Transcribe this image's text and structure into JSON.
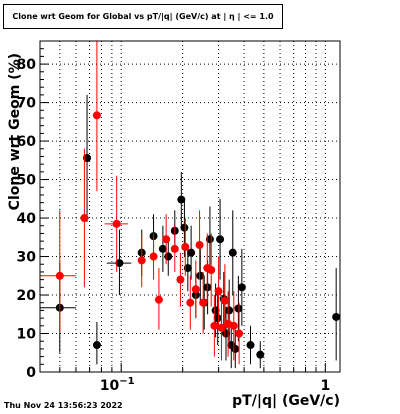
{
  "chart_data": {
    "type": "scatter",
    "title": "Clone wrt Geom for Global vs pT/|q| (GeV/c) at | η | <= 1.0",
    "xlabel": "pT/|q| (GeV/c)",
    "ylabel": "Clone wrt Geom (%)",
    "xscale": "log",
    "xlim": [
      0.04,
      1.18
    ],
    "ylim": [
      0,
      86
    ],
    "grid": true,
    "x_major_ticks": [
      {
        "value": 0.1,
        "label": "10",
        "exp": "−1"
      },
      {
        "value": 1,
        "label": "1"
      }
    ],
    "y_ticks": [
      0,
      10,
      20,
      30,
      40,
      50,
      60,
      70,
      80
    ],
    "series": [
      {
        "color": "#000000",
        "points": [
          {
            "x": 0.05,
            "y": 16.7,
            "ylo": 5,
            "yhi": 28.5,
            "xlo": 0.04,
            "xhi": 0.06
          },
          {
            "x": 0.068,
            "y": 55.6,
            "ylo": 39,
            "yhi": 72
          },
          {
            "x": 0.076,
            "y": 7.0,
            "ylo": 2,
            "yhi": 13
          },
          {
            "x": 0.098,
            "y": 28.3,
            "ylo": 20,
            "yhi": 37,
            "xlo": 0.085,
            "xhi": 0.112
          },
          {
            "x": 0.126,
            "y": 31.0,
            "ylo": 25,
            "yhi": 37
          },
          {
            "x": 0.144,
            "y": 35.3,
            "ylo": 29,
            "yhi": 41
          },
          {
            "x": 0.16,
            "y": 32.0,
            "ylo": 26,
            "yhi": 38
          },
          {
            "x": 0.17,
            "y": 30.0,
            "ylo": 25,
            "yhi": 35
          },
          {
            "x": 0.183,
            "y": 36.7,
            "ylo": 31,
            "yhi": 42
          },
          {
            "x": 0.197,
            "y": 44.8,
            "ylo": 37,
            "yhi": 52
          },
          {
            "x": 0.204,
            "y": 37.5,
            "ylo": 30,
            "yhi": 45
          },
          {
            "x": 0.212,
            "y": 27.0,
            "ylo": 21,
            "yhi": 33
          },
          {
            "x": 0.22,
            "y": 31.0,
            "ylo": 24,
            "yhi": 38
          },
          {
            "x": 0.232,
            "y": 20.0,
            "ylo": 14,
            "yhi": 26
          },
          {
            "x": 0.244,
            "y": 25.0,
            "ylo": 18,
            "yhi": 32
          },
          {
            "x": 0.255,
            "y": 18.0,
            "ylo": 11,
            "yhi": 25
          },
          {
            "x": 0.265,
            "y": 22.0,
            "ylo": 15,
            "yhi": 29
          },
          {
            "x": 0.272,
            "y": 34.5,
            "ylo": 26,
            "yhi": 43
          },
          {
            "x": 0.29,
            "y": 16.0,
            "ylo": 9,
            "yhi": 23
          },
          {
            "x": 0.297,
            "y": 14.0,
            "ylo": 7,
            "yhi": 21
          },
          {
            "x": 0.305,
            "y": 34.5,
            "ylo": 24,
            "yhi": 45
          },
          {
            "x": 0.318,
            "y": 19.0,
            "ylo": 12,
            "yhi": 26
          },
          {
            "x": 0.326,
            "y": 10.0,
            "ylo": 3,
            "yhi": 17
          },
          {
            "x": 0.338,
            "y": 16.0,
            "ylo": 8,
            "yhi": 24
          },
          {
            "x": 0.346,
            "y": 7.0,
            "ylo": 1,
            "yhi": 13
          },
          {
            "x": 0.352,
            "y": 31.0,
            "ylo": 20,
            "yhi": 42
          },
          {
            "x": 0.362,
            "y": 6.0,
            "ylo": 1,
            "yhi": 11
          },
          {
            "x": 0.375,
            "y": 16.5,
            "ylo": 8,
            "yhi": 25
          },
          {
            "x": 0.39,
            "y": 22.0,
            "ylo": 12,
            "yhi": 32
          },
          {
            "x": 0.43,
            "y": 7.0,
            "ylo": 2,
            "yhi": 12,
            "xlo": 0.41,
            "xhi": 0.45
          },
          {
            "x": 0.48,
            "y": 4.5,
            "ylo": 1,
            "yhi": 8,
            "xlo": 0.46,
            "xhi": 0.5
          },
          {
            "x": 1.13,
            "y": 14.3,
            "ylo": 3,
            "yhi": 27,
            "xlo": 1.09,
            "xhi": 1.18
          }
        ]
      },
      {
        "color": "#ff0000",
        "points": [
          {
            "x": 0.05,
            "y": 25.0,
            "ylo": 10,
            "yhi": 42,
            "xlo": 0.04,
            "xhi": 0.06
          },
          {
            "x": 0.066,
            "y": 40.0,
            "ylo": 22,
            "yhi": 58
          },
          {
            "x": 0.076,
            "y": 66.7,
            "ylo": 47,
            "yhi": 86
          },
          {
            "x": 0.095,
            "y": 38.5,
            "ylo": 26,
            "yhi": 51,
            "xlo": 0.083,
            "xhi": 0.108
          },
          {
            "x": 0.126,
            "y": 29.0,
            "ylo": 22,
            "yhi": 36
          },
          {
            "x": 0.144,
            "y": 30.0,
            "ylo": 24,
            "yhi": 36
          },
          {
            "x": 0.153,
            "y": 18.8,
            "ylo": 11,
            "yhi": 27
          },
          {
            "x": 0.166,
            "y": 34.5,
            "ylo": 28,
            "yhi": 41
          },
          {
            "x": 0.183,
            "y": 32.0,
            "ylo": 26,
            "yhi": 38
          },
          {
            "x": 0.195,
            "y": 24.0,
            "ylo": 17,
            "yhi": 31
          },
          {
            "x": 0.206,
            "y": 32.5,
            "ylo": 25,
            "yhi": 40
          },
          {
            "x": 0.218,
            "y": 18.0,
            "ylo": 11,
            "yhi": 25
          },
          {
            "x": 0.232,
            "y": 21.5,
            "ylo": 14,
            "yhi": 29
          },
          {
            "x": 0.242,
            "y": 33.0,
            "ylo": 24,
            "yhi": 42
          },
          {
            "x": 0.252,
            "y": 18.0,
            "ylo": 10,
            "yhi": 26
          },
          {
            "x": 0.264,
            "y": 27.0,
            "ylo": 18,
            "yhi": 36
          },
          {
            "x": 0.276,
            "y": 26.5,
            "ylo": 17,
            "yhi": 36
          },
          {
            "x": 0.286,
            "y": 12.0,
            "ylo": 4,
            "yhi": 20
          },
          {
            "x": 0.3,
            "y": 21.0,
            "ylo": 12,
            "yhi": 30
          },
          {
            "x": 0.31,
            "y": 11.5,
            "ylo": 3,
            "yhi": 20
          },
          {
            "x": 0.322,
            "y": 18.5,
            "ylo": 9,
            "yhi": 28
          },
          {
            "x": 0.334,
            "y": 12.5,
            "ylo": 4,
            "yhi": 21
          },
          {
            "x": 0.356,
            "y": 12.0,
            "ylo": 3,
            "yhi": 21
          },
          {
            "x": 0.378,
            "y": 10.0,
            "ylo": 2,
            "yhi": 18
          }
        ]
      }
    ]
  },
  "timestamp": "Thu Nov 24 13:56:23 2022"
}
